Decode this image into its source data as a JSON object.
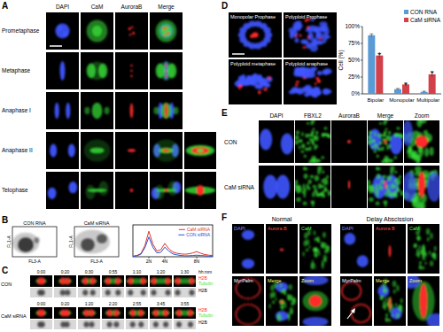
{
  "panels": {
    "A": {
      "label": "A",
      "columns": [
        "DAPI",
        "CaM",
        "AuroraB",
        "Merge"
      ],
      "rows": [
        "Prometaphase",
        "Metaphase",
        "Anaphase I",
        "Anaphase II",
        "Telophase"
      ]
    },
    "B": {
      "label": "B",
      "plots": [
        {
          "title": "CON RNA",
          "x_label": "FL3-A",
          "y_label": "FL1-A"
        },
        {
          "title": "CaM siRNA",
          "x_label": "FL3-A",
          "y_label": "FL1-A"
        }
      ]
    },
    "C": {
      "label": "C",
      "unit": "hh:mm",
      "groups": [
        {
          "name": "CON",
          "times": [
            "0:00",
            "0:20",
            "0:30",
            "0:55",
            "1:10",
            "1:20",
            "1:30"
          ],
          "channels": [
            [
              "H2B",
              "Tubulin"
            ],
            [
              "H2B"
            ]
          ]
        },
        {
          "name": "CaM siRNA",
          "times": [
            "0:00",
            "0:20",
            "1:20",
            "2:20",
            "2:55",
            "3:45",
            "3:55"
          ],
          "channels": [
            [
              "H2B",
              "Tubulin"
            ],
            [
              "H2B"
            ]
          ]
        }
      ]
    },
    "D": {
      "label": "D",
      "images": [
        "Monopolar Prophase",
        "Polyploid Prophase",
        "Polyploid metaphase",
        "Polyploid anaphase"
      ]
    },
    "E": {
      "label": "E",
      "columns": [
        "DAPI",
        "FBXL2",
        "AuroraB",
        "Merge",
        "Zoom"
      ],
      "rows": [
        "CON",
        "CaM siRNA"
      ]
    },
    "F": {
      "label": "F",
      "conditions": [
        "Normal",
        "Delay Abscission"
      ],
      "tiles": [
        "DAPI",
        "Aurora B",
        "CaM",
        "MyrPalm",
        "Merge",
        "Zoom"
      ]
    }
  },
  "chart_data": [
    {
      "type": "line",
      "x": [
        0,
        0.5,
        1,
        1.5,
        2,
        2.5,
        3,
        3.5,
        4,
        4.5,
        5,
        5.5,
        6,
        6.5,
        7,
        7.5,
        8,
        8.5,
        9,
        9.5,
        10
      ],
      "xlim": [
        0,
        10
      ],
      "xticks": [
        {
          "value": 2,
          "label": "2N"
        },
        {
          "value": 4,
          "label": "4N"
        },
        {
          "value": 8,
          "label": "8N"
        }
      ],
      "ylim": [
        0,
        100
      ],
      "tick_labels": "x",
      "grid": false,
      "legend": "upper right",
      "series": [
        {
          "name": "CaM siRNA",
          "color": "#e0352b",
          "values": [
            2,
            4,
            10,
            35,
            80,
            40,
            18,
            22,
            42,
            25,
            15,
            11,
            9,
            8,
            9,
            12,
            16,
            11,
            7,
            5,
            4
          ]
        },
        {
          "name": "CON siRNA",
          "color": "#2b4fd6",
          "values": [
            1,
            3,
            8,
            28,
            62,
            30,
            12,
            14,
            30,
            18,
            9,
            6,
            4,
            3,
            3,
            4,
            5,
            4,
            3,
            2,
            2
          ]
        }
      ]
    },
    {
      "type": "bar",
      "y_label": "Cell (%)",
      "categories": [
        "Bipolar",
        "Monopolar",
        "Multipolar"
      ],
      "ylim": [
        0,
        100
      ],
      "yticks": [
        {
          "value": 0,
          "label": "0%"
        },
        {
          "value": 25,
          "label": "25%"
        },
        {
          "value": 50,
          "label": "50%"
        },
        {
          "value": 75,
          "label": "75%"
        },
        {
          "value": 100,
          "label": "100%"
        }
      ],
      "grid": false,
      "legend": "upper right",
      "series": [
        {
          "name": "CON RNA",
          "color": "#5b9bd5",
          "values": [
            87,
            7,
            3
          ],
          "errors": [
            2,
            1,
            1
          ]
        },
        {
          "name": "CaM siRNA",
          "color": "#d2404a",
          "values": [
            57,
            14,
            29
          ],
          "errors": [
            3,
            2,
            4
          ],
          "annotations": [
            "*",
            "*",
            "*"
          ]
        }
      ]
    }
  ]
}
